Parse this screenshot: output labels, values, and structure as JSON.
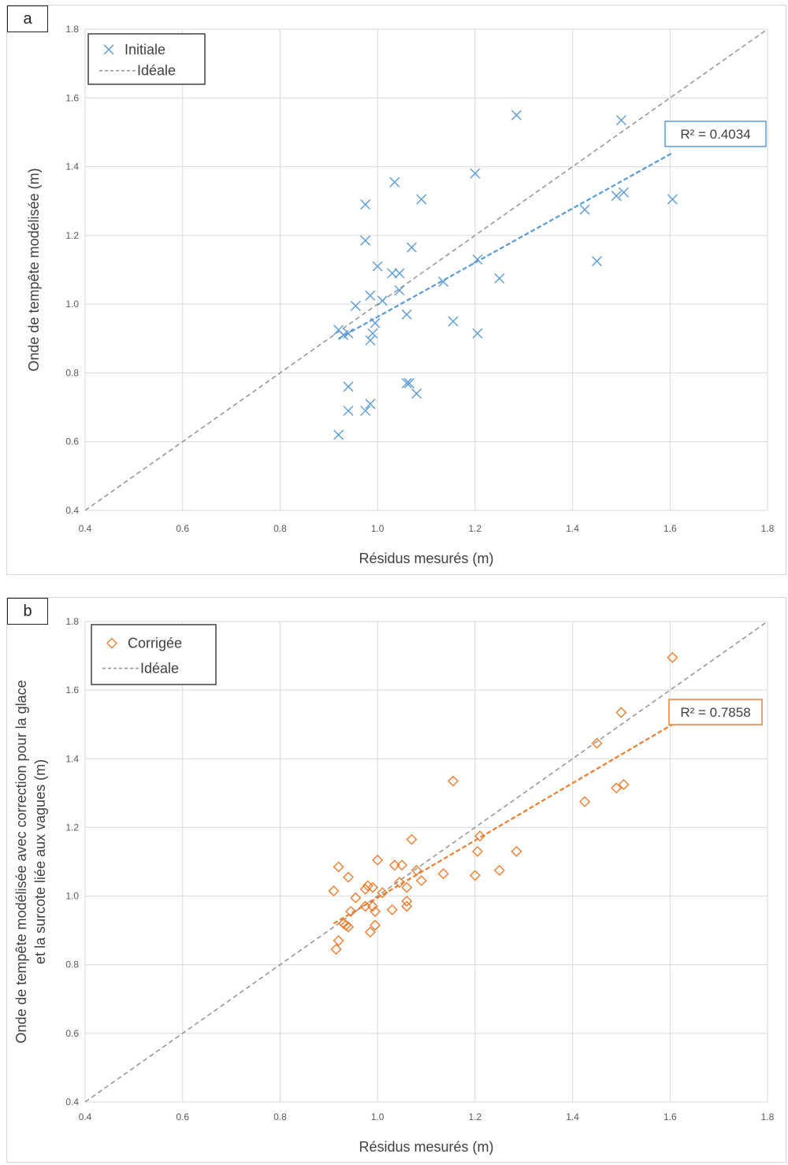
{
  "chart_data": [
    {
      "panel_label": "a",
      "type": "scatter",
      "title": "",
      "xlabel": "Résidus mesurés (m)",
      "ylabel": [
        "Onde de tempête modélisée (m)"
      ],
      "xlim": [
        0.4,
        1.8
      ],
      "ylim": [
        0.4,
        1.8
      ],
      "ticks": [
        "0.4",
        "0.6",
        "0.8",
        "1.0",
        "1.2",
        "1.4",
        "1.6",
        "1.8"
      ],
      "grid": true,
      "legend_position": "top-left",
      "r2_label": "R² = 0.4034",
      "series": [
        {
          "name": "Initiale",
          "marker": "x",
          "color": "#5b9bd5",
          "points": [
            [
              0.92,
              0.62
            ],
            [
              0.94,
              0.69
            ],
            [
              0.94,
              0.76
            ],
            [
              0.975,
              0.69
            ],
            [
              0.985,
              0.71
            ],
            [
              1.06,
              0.77
            ],
            [
              1.065,
              0.77
            ],
            [
              1.08,
              0.74
            ],
            [
              0.92,
              0.925
            ],
            [
              0.93,
              0.91
            ],
            [
              0.94,
              0.915
            ],
            [
              0.955,
              0.995
            ],
            [
              0.985,
              0.895
            ],
            [
              0.99,
              0.915
            ],
            [
              0.995,
              0.945
            ],
            [
              0.985,
              1.025
            ],
            [
              1.01,
              1.01
            ],
            [
              1.03,
              1.09
            ],
            [
              1.045,
              1.09
            ],
            [
              1.045,
              1.04
            ],
            [
              1.06,
              0.97
            ],
            [
              0.975,
              1.185
            ],
            [
              1.0,
              1.11
            ],
            [
              0.975,
              1.29
            ],
            [
              1.035,
              1.355
            ],
            [
              1.07,
              1.165
            ],
            [
              1.09,
              1.305
            ],
            [
              1.135,
              1.065
            ],
            [
              1.155,
              0.95
            ],
            [
              1.2,
              1.38
            ],
            [
              1.205,
              1.13
            ],
            [
              1.205,
              0.915
            ],
            [
              1.25,
              1.075
            ],
            [
              1.285,
              1.55
            ],
            [
              1.425,
              1.275
            ],
            [
              1.45,
              1.125
            ],
            [
              1.49,
              1.315
            ],
            [
              1.5,
              1.535
            ],
            [
              1.505,
              1.325
            ],
            [
              1.605,
              1.305
            ]
          ]
        },
        {
          "name": "Idéale",
          "color": "#999999",
          "line": [
            [
              0.4,
              0.4
            ],
            [
              1.8,
              1.8
            ]
          ]
        }
      ],
      "trendline": {
        "color": "#5b9bd5",
        "x": [
          0.92,
          1.605
        ],
        "y": [
          0.9,
          1.44
        ]
      }
    },
    {
      "panel_label": "b",
      "type": "scatter",
      "title": "",
      "xlabel": "Résidus mesurés (m)",
      "ylabel": [
        "Onde de tempête modélisée avec correction pour la glace",
        "et la surcote liée aux vagues (m)"
      ],
      "xlim": [
        0.4,
        1.8
      ],
      "ylim": [
        0.4,
        1.8
      ],
      "ticks": [
        "0.4",
        "0.6",
        "0.8",
        "1.0",
        "1.2",
        "1.4",
        "1.6",
        "1.8"
      ],
      "grid": true,
      "legend_position": "top-left",
      "r2_label": "R² = 0.7858",
      "series": [
        {
          "name": "Corrigée",
          "marker": "diamond",
          "color": "#ed7d31",
          "points": [
            [
              0.91,
              1.015
            ],
            [
              0.915,
              0.845
            ],
            [
              0.92,
              0.87
            ],
            [
              0.92,
              1.085
            ],
            [
              0.93,
              0.92
            ],
            [
              0.935,
              0.915
            ],
            [
              0.94,
              0.91
            ],
            [
              0.94,
              1.055
            ],
            [
              0.945,
              0.955
            ],
            [
              0.955,
              0.995
            ],
            [
              0.975,
              1.02
            ],
            [
              0.975,
              0.97
            ],
            [
              0.98,
              1.03
            ],
            [
              0.985,
              0.895
            ],
            [
              0.99,
              0.97
            ],
            [
              0.99,
              1.025
            ],
            [
              0.995,
              0.915
            ],
            [
              0.995,
              0.955
            ],
            [
              1.0,
              1.105
            ],
            [
              1.01,
              1.01
            ],
            [
              1.03,
              0.96
            ],
            [
              1.035,
              1.09
            ],
            [
              1.045,
              1.04
            ],
            [
              1.05,
              1.09
            ],
            [
              1.06,
              0.985
            ],
            [
              1.06,
              1.025
            ],
            [
              1.06,
              0.97
            ],
            [
              1.07,
              1.165
            ],
            [
              1.08,
              1.075
            ],
            [
              1.09,
              1.045
            ],
            [
              1.135,
              1.065
            ],
            [
              1.155,
              1.335
            ],
            [
              1.2,
              1.06
            ],
            [
              1.205,
              1.13
            ],
            [
              1.21,
              1.175
            ],
            [
              1.25,
              1.075
            ],
            [
              1.285,
              1.13
            ],
            [
              1.425,
              1.275
            ],
            [
              1.45,
              1.445
            ],
            [
              1.49,
              1.315
            ],
            [
              1.5,
              1.535
            ],
            [
              1.505,
              1.325
            ],
            [
              1.605,
              1.695
            ]
          ]
        },
        {
          "name": "Idéale",
          "color": "#999999",
          "line": [
            [
              0.4,
              0.4
            ],
            [
              1.8,
              1.8
            ]
          ]
        }
      ],
      "trendline": {
        "color": "#ed7d31",
        "x": [
          0.91,
          1.605
        ],
        "y": [
          0.92,
          1.5
        ]
      }
    }
  ]
}
